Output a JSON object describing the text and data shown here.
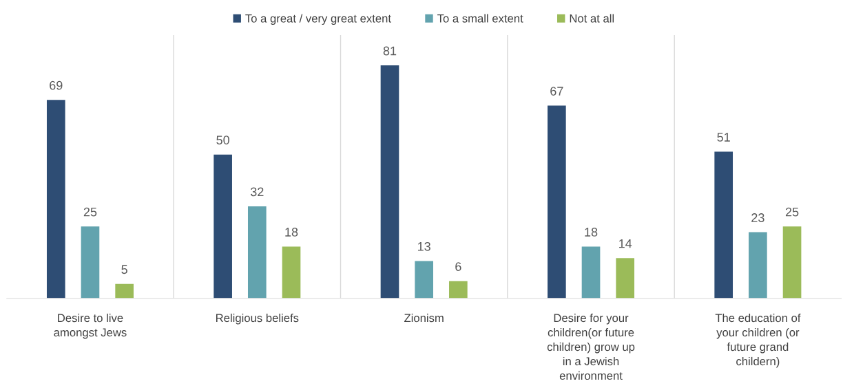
{
  "chart_data": {
    "type": "bar",
    "categories": [
      "Desire to live\namongst Jews",
      "Religious beliefs",
      "Zionism",
      "Desire for your\nchildren(or future\nchildren) grow up\nin a Jewish\nenvironment",
      "The education of\nyour children (or\nfuture grand\nchildern)"
    ],
    "series": [
      {
        "name": "To a great / very great extent",
        "color": "#2e4d74",
        "values": [
          69,
          50,
          81,
          67,
          51
        ]
      },
      {
        "name": "To a small extent",
        "color": "#62a3ae",
        "values": [
          25,
          32,
          13,
          18,
          23
        ]
      },
      {
        "name": "Not at all",
        "color": "#9bbb59",
        "values": [
          5,
          18,
          6,
          14,
          25
        ]
      }
    ],
    "data_labels": true,
    "legend": "top",
    "grid": false
  }
}
